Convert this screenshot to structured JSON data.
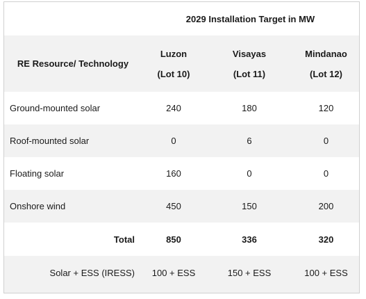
{
  "table": {
    "title": "2029 Installation Target in MW",
    "resource_header": "RE Resource/ Technology",
    "regions": [
      {
        "name": "Luzon",
        "lot": "(Lot 10)"
      },
      {
        "name": "Visayas",
        "lot": "(Lot 11)"
      },
      {
        "name": "Mindanao",
        "lot": "(Lot 12)"
      }
    ],
    "rows": [
      {
        "label": "Ground-mounted solar",
        "values": [
          "240",
          "180",
          "120"
        ]
      },
      {
        "label": "Roof-mounted solar",
        "values": [
          "0",
          "6",
          "0"
        ]
      },
      {
        "label": "Floating solar",
        "values": [
          "160",
          "0",
          "0"
        ]
      },
      {
        "label": "Onshore wind",
        "values": [
          "450",
          "150",
          "200"
        ]
      }
    ],
    "total": {
      "label": "Total",
      "values": [
        "850",
        "336",
        "320"
      ]
    },
    "iress": {
      "label": "Solar + ESS (IRESS)",
      "values": [
        "100 + ESS",
        "150 + ESS",
        "100 + ESS"
      ]
    }
  }
}
